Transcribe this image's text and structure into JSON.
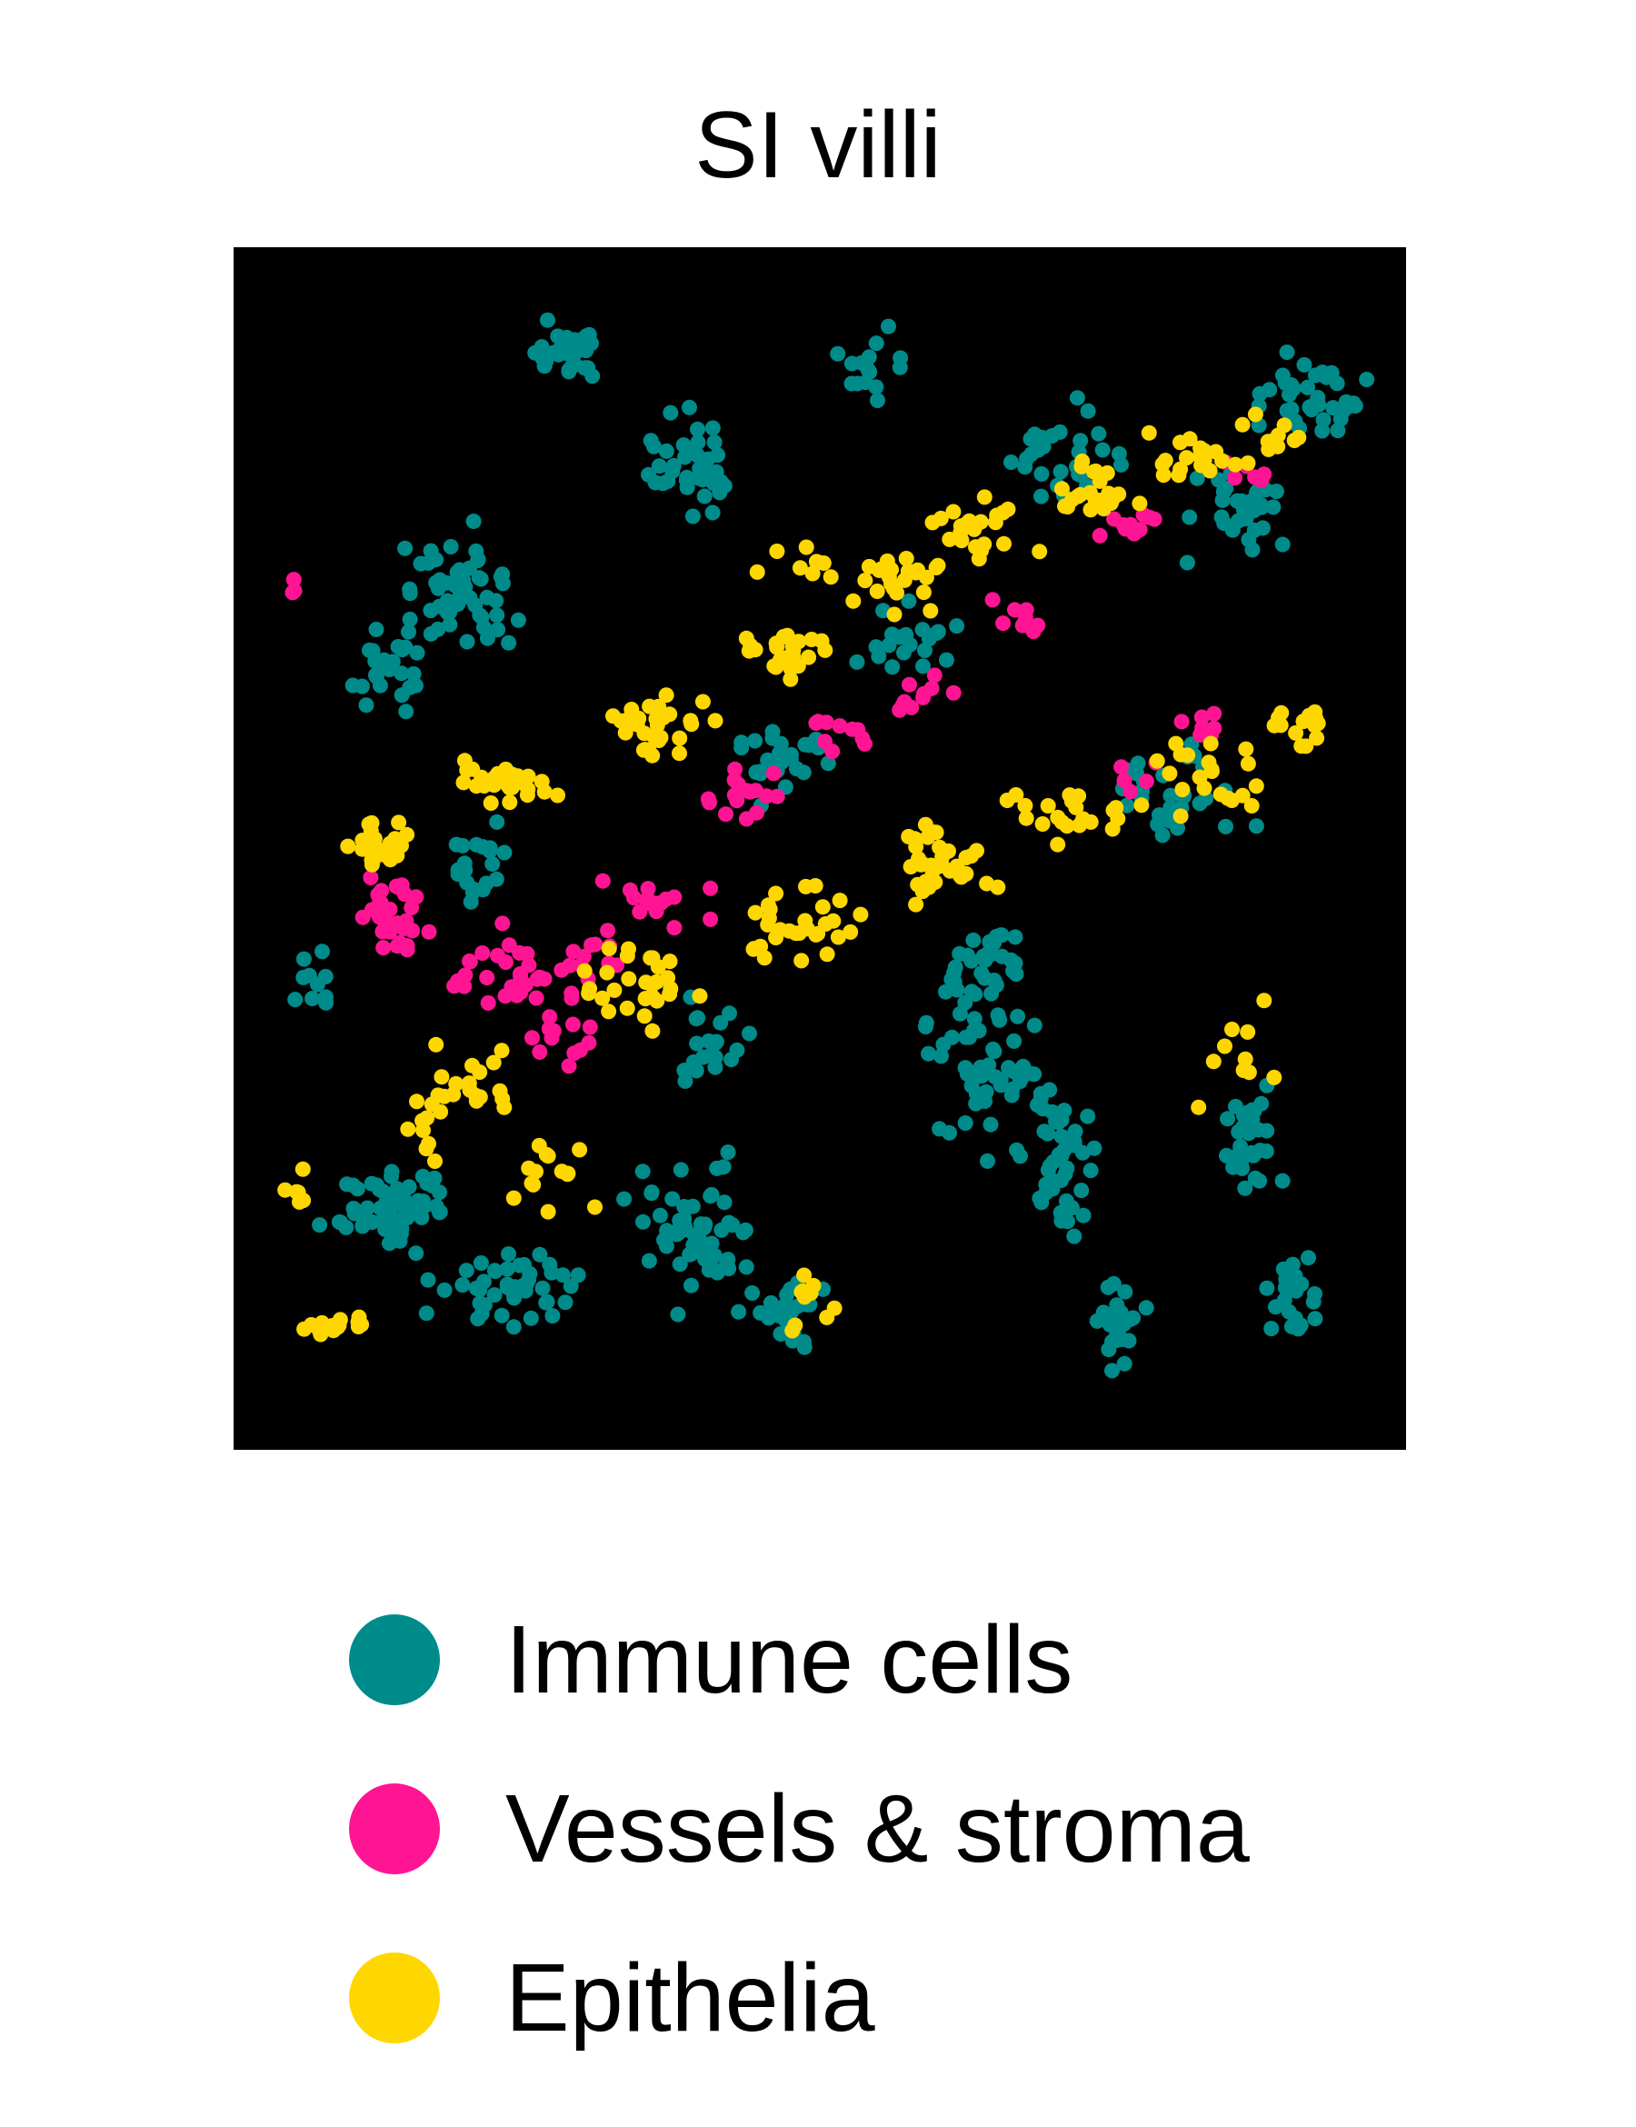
{
  "chart_data": {
    "type": "scatter",
    "title": "SI villi",
    "xlabel": "",
    "ylabel": "",
    "xlim": [
      0,
      1
    ],
    "ylim": [
      0,
      1
    ],
    "grid": false,
    "axes": "none",
    "background": "#000000",
    "legend_position": "bottom",
    "series": [
      {
        "name": "Immune cells",
        "color": "#008B8B",
        "points": []
      },
      {
        "name": "Vessels & stroma",
        "color": "#FF1493",
        "points": []
      },
      {
        "name": "Epithelia",
        "color": "#FFD700",
        "points": []
      }
    ]
  }
}
